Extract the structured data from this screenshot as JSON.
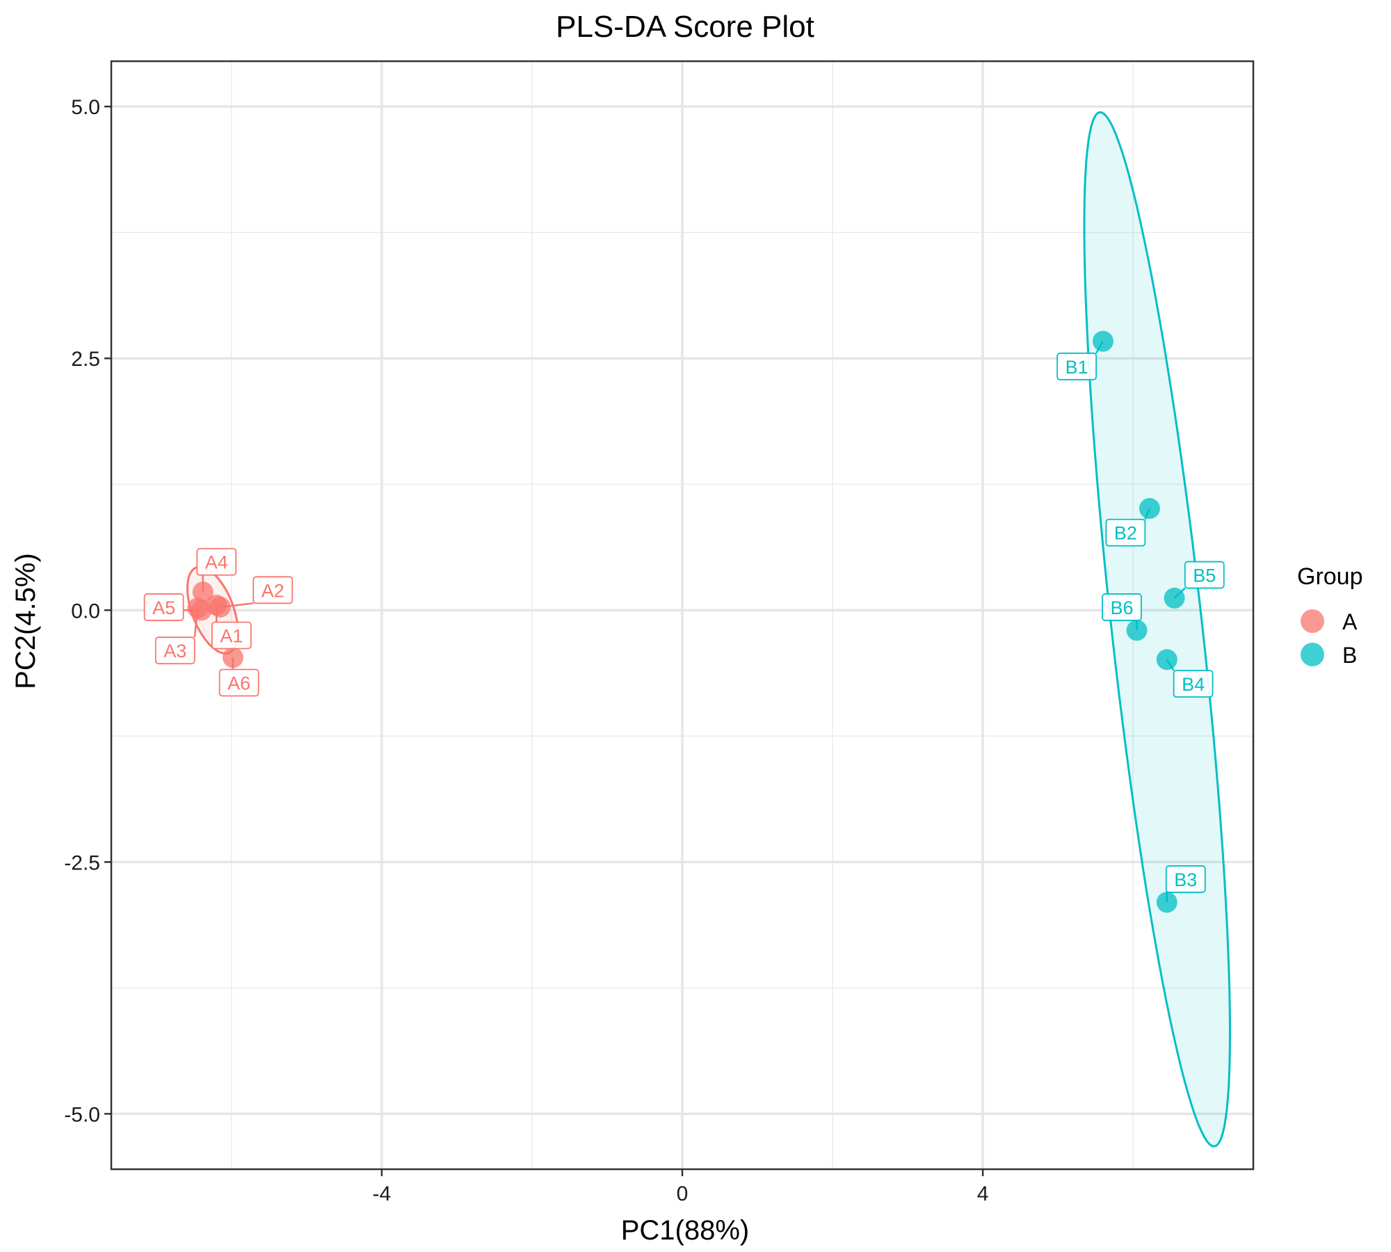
{
  "chart_data": {
    "type": "scatter",
    "title": "PLS-DA Score Plot",
    "xlabel": "PC1(88%)",
    "ylabel": "PC2(4.5%)",
    "xlim": [
      -7.6,
      7.6
    ],
    "ylim": [
      -5.55,
      5.45
    ],
    "x_ticks": [
      -4,
      0,
      4
    ],
    "y_ticks": [
      5.0,
      2.5,
      0.0,
      -2.5,
      -5.0
    ],
    "x_tick_labels": [
      "-4",
      "0",
      "4"
    ],
    "y_tick_labels": [
      "5.0",
      "2.5",
      "0.0",
      "-2.5",
      "-5.0"
    ],
    "grid": true,
    "legend": {
      "title": "Group",
      "placement": "right",
      "entries": [
        {
          "label": "A",
          "color": "#F8766D"
        },
        {
          "label": "B",
          "color": "#00BFC4"
        }
      ]
    },
    "series": [
      {
        "name": "A",
        "color": "#F8766D",
        "points": [
          {
            "label": "A1",
            "x": -6.2,
            "y": 0.05,
            "lx": -6.0,
            "ly": -0.25
          },
          {
            "label": "A2",
            "x": -6.15,
            "y": 0.03,
            "lx": -5.45,
            "ly": 0.2
          },
          {
            "label": "A3",
            "x": -6.45,
            "y": 0.02,
            "lx": -6.75,
            "ly": -0.4
          },
          {
            "label": "A4",
            "x": -6.38,
            "y": 0.18,
            "lx": -6.2,
            "ly": 0.48
          },
          {
            "label": "A5",
            "x": -6.4,
            "y": 0.0,
            "lx": -6.9,
            "ly": 0.03
          },
          {
            "label": "A6",
            "x": -5.98,
            "y": -0.47,
            "lx": -5.9,
            "ly": -0.72
          }
        ],
        "ellipse": {
          "cx": -6.25,
          "cy": 0.0,
          "rx": 0.48,
          "ry": 0.26,
          "angle": -58
        }
      },
      {
        "name": "B",
        "color": "#00BFC4",
        "points": [
          {
            "label": "B1",
            "x": 5.6,
            "y": 2.67,
            "lx": 5.25,
            "ly": 2.42
          },
          {
            "label": "B2",
            "x": 6.22,
            "y": 1.01,
            "lx": 5.9,
            "ly": 0.77
          },
          {
            "label": "B3",
            "x": 6.45,
            "y": -2.9,
            "lx": 6.7,
            "ly": -2.67
          },
          {
            "label": "B4",
            "x": 6.45,
            "y": -0.49,
            "lx": 6.8,
            "ly": -0.73
          },
          {
            "label": "B5",
            "x": 6.55,
            "y": 0.12,
            "lx": 6.95,
            "ly": 0.35
          },
          {
            "label": "B6",
            "x": 6.05,
            "y": -0.2,
            "lx": 5.85,
            "ly": 0.03
          }
        ],
        "ellipse": {
          "cx": 6.32,
          "cy": -0.19,
          "rx": 5.19,
          "ry": 0.6,
          "angle": -81.5
        }
      }
    ]
  }
}
